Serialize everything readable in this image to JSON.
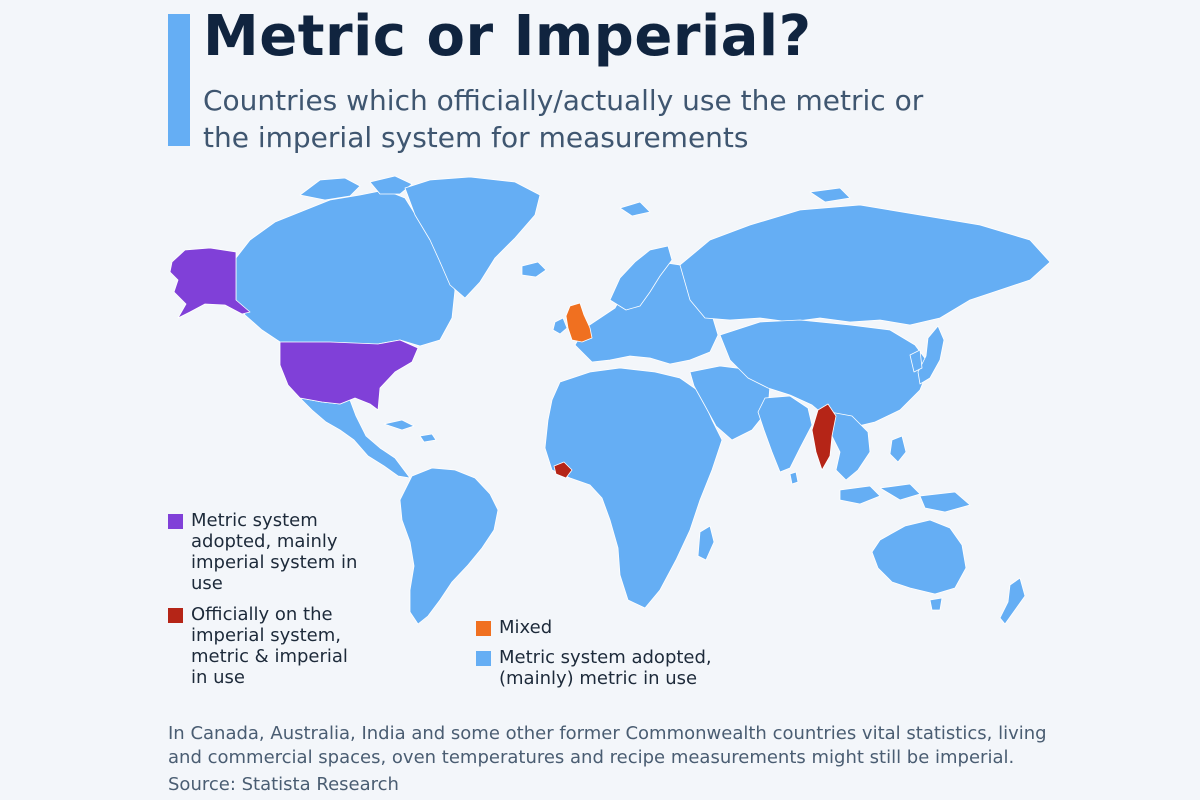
{
  "header": {
    "title": "Metric or Imperial?",
    "subtitle": "Countries which officially/actually use the metric or the imperial system for measurements"
  },
  "colors": {
    "accent": "#65aef4",
    "metric": "#65aef4",
    "metric_adopted_imperial_use": "#8040d8",
    "officially_imperial": "#b52517",
    "mixed": "#f07020",
    "borders": "#ffffff",
    "background": "#f3f6fa"
  },
  "legend": [
    {
      "key": "metric_adopted_imperial_use",
      "label": "Metric system adopted, mainly imperial system in use",
      "color": "#8040d8"
    },
    {
      "key": "officially_imperial",
      "label": "Officially on the imperial system, metric & imperial in use",
      "color": "#b52517"
    },
    {
      "key": "mixed",
      "label": "Mixed",
      "color": "#f07020"
    },
    {
      "key": "metric",
      "label": "Metric system adopted, (mainly) metric in use",
      "color": "#65aef4"
    }
  ],
  "map": {
    "highlighted_regions": [
      {
        "region": "United States",
        "category": "metric_adopted_imperial_use"
      },
      {
        "region": "Alaska",
        "category": "metric_adopted_imperial_use"
      },
      {
        "region": "United Kingdom",
        "category": "mixed"
      },
      {
        "region": "Liberia",
        "category": "officially_imperial"
      },
      {
        "region": "Myanmar",
        "category": "officially_imperial"
      }
    ],
    "default_category": "metric"
  },
  "footer": {
    "note": "In Canada, Australia, India and some other former Commonwealth countries vital statistics, living and commercial spaces, oven temperatures and recipe measurements might still be imperial.",
    "source": "Source: Statista Research"
  }
}
